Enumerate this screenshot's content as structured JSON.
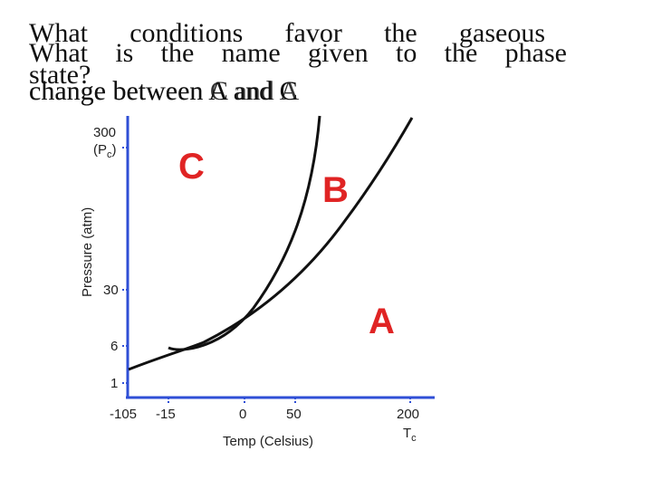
{
  "slide": {
    "title_q1_line1": "What conditions favor the gaseous",
    "title_q1_line2": "state?",
    "title_q2_line1": "What is the name given to the phase",
    "title_q2_line2a": "change between A and C",
    "title_q2_line2b": "change between C and A"
  },
  "diagram": {
    "y_axis_label": "Pressure (atm)",
    "x_axis_label": "Temp (Celsius)",
    "y_ticks": [
      "300",
      "30",
      "6",
      "1"
    ],
    "y_top_sub": "(P",
    "y_top_sub_c": "c",
    "y_top_sub_end": ")",
    "x_ticks": [
      "-105",
      "-15",
      "0",
      "50",
      "200"
    ],
    "x_tc": "T",
    "x_tc_sub": "c",
    "region_c": "C",
    "region_b": "B",
    "region_a": "A",
    "axis_color": "#2f4fd6",
    "region_color": "#e02424"
  }
}
